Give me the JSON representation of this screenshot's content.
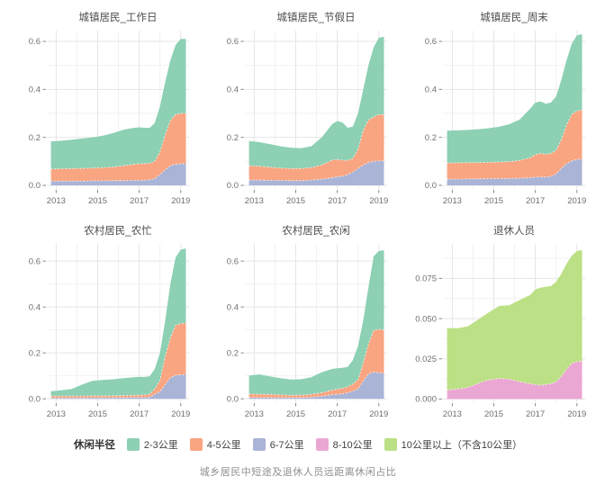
{
  "page": {
    "caption": "城乡居民中短途及退休人员远距离休闲占比"
  },
  "legend": {
    "title": "休闲半径",
    "items": [
      {
        "label": "2-3公里",
        "color": "#8dd0b4"
      },
      {
        "label": "4-5公里",
        "color": "#f9a581"
      },
      {
        "label": "6-7公里",
        "color": "#aab4d6"
      },
      {
        "label": "8-10公里",
        "color": "#eba7d3"
      },
      {
        "label": "10公里以上（不含10公里）",
        "color": "#bce085"
      }
    ]
  },
  "style": {
    "grid_major": "#e5e5e5",
    "grid_minor": "#f2f2f2",
    "tick_color": "#8a8a8a",
    "tick_label_color": "#707070",
    "title_color": "#4d4d4d",
    "band_boundary": "#ffffff"
  },
  "chart_data": [
    {
      "type": "area",
      "stacked": true,
      "title": "城镇居民_工作日",
      "x": [
        2012.75,
        2013.25,
        2013.75,
        2014.25,
        2014.75,
        2015.25,
        2015.75,
        2016.25,
        2016.75,
        2017.0,
        2017.25,
        2017.5,
        2017.75,
        2018.0,
        2018.25,
        2018.5,
        2018.75,
        2019.0,
        2019.25
      ],
      "xlim": [
        2012.55,
        2019.4
      ],
      "ylim": [
        -0.015,
        0.645
      ],
      "xticks": [
        2013,
        2015,
        2017,
        2019
      ],
      "xtick_labels": [
        "2013",
        "2015",
        "2017",
        "2019"
      ],
      "xticks_minor": [
        2014,
        2016,
        2018
      ],
      "yticks": [
        0,
        0.2,
        0.4,
        0.6
      ],
      "ytick_labels": [
        "0.0",
        "0.2",
        "0.4",
        "0.6"
      ],
      "yticks_minor": [
        0.1,
        0.3,
        0.5
      ],
      "series": [
        {
          "name": "6-7公里",
          "color": "#aab4d6",
          "values": [
            0.018,
            0.018,
            0.018,
            0.018,
            0.019,
            0.019,
            0.02,
            0.02,
            0.021,
            0.021,
            0.022,
            0.023,
            0.028,
            0.045,
            0.065,
            0.082,
            0.088,
            0.09,
            0.09
          ]
        },
        {
          "name": "4-5公里",
          "color": "#f9a581",
          "values": [
            0.05,
            0.051,
            0.052,
            0.053,
            0.053,
            0.055,
            0.057,
            0.062,
            0.067,
            0.069,
            0.069,
            0.069,
            0.072,
            0.095,
            0.145,
            0.188,
            0.207,
            0.21,
            0.21
          ]
        },
        {
          "name": "2-3公里",
          "color": "#8dd0b4",
          "values": [
            0.115,
            0.117,
            0.12,
            0.124,
            0.128,
            0.133,
            0.141,
            0.15,
            0.152,
            0.152,
            0.149,
            0.148,
            0.16,
            0.19,
            0.22,
            0.25,
            0.29,
            0.31,
            0.31
          ]
        }
      ]
    },
    {
      "type": "area",
      "stacked": true,
      "title": "城镇居民_节假日",
      "x": [
        2012.75,
        2013.25,
        2013.75,
        2014.25,
        2014.75,
        2015.25,
        2015.75,
        2016.25,
        2016.75,
        2017.0,
        2017.25,
        2017.5,
        2017.75,
        2018.0,
        2018.25,
        2018.5,
        2018.75,
        2019.0,
        2019.25
      ],
      "xlim": [
        2012.55,
        2019.4
      ],
      "ylim": [
        -0.015,
        0.645
      ],
      "xticks": [
        2013,
        2015,
        2017,
        2019
      ],
      "xtick_labels": [
        "2013",
        "2015",
        "2017",
        "2019"
      ],
      "xticks_minor": [
        2014,
        2016,
        2018
      ],
      "yticks": [
        0,
        0.2,
        0.4,
        0.6
      ],
      "ytick_labels": [
        "0.0",
        "0.2",
        "0.4",
        "0.6"
      ],
      "yticks_minor": [
        0.1,
        0.3,
        0.5
      ],
      "series": [
        {
          "name": "6-7公里",
          "color": "#aab4d6",
          "values": [
            0.022,
            0.022,
            0.021,
            0.021,
            0.02,
            0.02,
            0.022,
            0.026,
            0.032,
            0.036,
            0.038,
            0.045,
            0.055,
            0.07,
            0.085,
            0.095,
            0.1,
            0.102,
            0.102
          ]
        },
        {
          "name": "4-5公里",
          "color": "#f9a581",
          "values": [
            0.06,
            0.058,
            0.055,
            0.051,
            0.05,
            0.05,
            0.052,
            0.059,
            0.073,
            0.072,
            0.067,
            0.059,
            0.057,
            0.08,
            0.145,
            0.177,
            0.185,
            0.193,
            0.193
          ]
        },
        {
          "name": "2-3公里",
          "color": "#8dd0b4",
          "values": [
            0.103,
            0.1,
            0.096,
            0.091,
            0.087,
            0.085,
            0.089,
            0.115,
            0.15,
            0.16,
            0.157,
            0.136,
            0.133,
            0.15,
            0.17,
            0.228,
            0.29,
            0.32,
            0.325
          ]
        }
      ]
    },
    {
      "type": "area",
      "stacked": true,
      "title": "城镇居民_周末",
      "x": [
        2012.75,
        2013.25,
        2013.75,
        2014.25,
        2014.75,
        2015.25,
        2015.75,
        2016.25,
        2016.75,
        2017.0,
        2017.25,
        2017.5,
        2017.75,
        2018.0,
        2018.25,
        2018.5,
        2018.75,
        2019.0,
        2019.25
      ],
      "xlim": [
        2012.55,
        2019.4
      ],
      "ylim": [
        -0.015,
        0.645
      ],
      "xticks": [
        2013,
        2015,
        2017,
        2019
      ],
      "xtick_labels": [
        "2013",
        "2015",
        "2017",
        "2019"
      ],
      "xticks_minor": [
        2014,
        2016,
        2018
      ],
      "yticks": [
        0,
        0.2,
        0.4,
        0.6
      ],
      "ytick_labels": [
        "0.0",
        "0.2",
        "0.4",
        "0.6"
      ],
      "yticks_minor": [
        0.1,
        0.3,
        0.5
      ],
      "series": [
        {
          "name": "6-7公里",
          "color": "#aab4d6",
          "values": [
            0.026,
            0.026,
            0.027,
            0.027,
            0.028,
            0.028,
            0.029,
            0.03,
            0.032,
            0.034,
            0.035,
            0.035,
            0.037,
            0.048,
            0.07,
            0.09,
            0.102,
            0.108,
            0.11
          ]
        },
        {
          "name": "4-5公里",
          "color": "#f9a581",
          "values": [
            0.067,
            0.068,
            0.068,
            0.068,
            0.068,
            0.069,
            0.07,
            0.074,
            0.083,
            0.094,
            0.098,
            0.095,
            0.096,
            0.097,
            0.12,
            0.16,
            0.193,
            0.202,
            0.205
          ]
        },
        {
          "name": "2-3公里",
          "color": "#8dd0b4",
          "values": [
            0.135,
            0.135,
            0.136,
            0.139,
            0.142,
            0.147,
            0.156,
            0.171,
            0.205,
            0.217,
            0.217,
            0.21,
            0.212,
            0.225,
            0.25,
            0.27,
            0.295,
            0.315,
            0.315
          ]
        }
      ]
    },
    {
      "type": "area",
      "stacked": true,
      "title": "农村居民_农忙",
      "x": [
        2012.75,
        2013.25,
        2013.75,
        2014.25,
        2014.75,
        2015.25,
        2015.75,
        2016.25,
        2016.75,
        2017.0,
        2017.25,
        2017.5,
        2017.75,
        2018.0,
        2018.25,
        2018.5,
        2018.75,
        2019.0,
        2019.25
      ],
      "xlim": [
        2012.55,
        2019.4
      ],
      "ylim": [
        -0.015,
        0.675
      ],
      "xticks": [
        2013,
        2015,
        2017,
        2019
      ],
      "xtick_labels": [
        "2013",
        "2015",
        "2017",
        "2019"
      ],
      "xticks_minor": [
        2014,
        2016,
        2018
      ],
      "yticks": [
        0,
        0.2,
        0.4,
        0.6
      ],
      "ytick_labels": [
        "0.0",
        "0.2",
        "0.4",
        "0.6"
      ],
      "yticks_minor": [
        0.1,
        0.3,
        0.5
      ],
      "series": [
        {
          "name": "6-7公里",
          "color": "#aab4d6",
          "values": [
            0.004,
            0.004,
            0.004,
            0.004,
            0.005,
            0.005,
            0.005,
            0.005,
            0.006,
            0.006,
            0.006,
            0.007,
            0.02,
            0.031,
            0.062,
            0.092,
            0.102,
            0.105,
            0.105
          ]
        },
        {
          "name": "4-5公里",
          "color": "#f9a581",
          "values": [
            0.008,
            0.008,
            0.008,
            0.008,
            0.008,
            0.008,
            0.008,
            0.009,
            0.009,
            0.01,
            0.011,
            0.013,
            0.023,
            0.049,
            0.123,
            0.173,
            0.218,
            0.223,
            0.225
          ]
        },
        {
          "name": "2-3公里",
          "color": "#8dd0b4",
          "values": [
            0.021,
            0.025,
            0.031,
            0.05,
            0.065,
            0.069,
            0.072,
            0.076,
            0.079,
            0.079,
            0.078,
            0.078,
            0.087,
            0.12,
            0.155,
            0.235,
            0.295,
            0.322,
            0.325
          ]
        }
      ]
    },
    {
      "type": "area",
      "stacked": true,
      "title": "农村居民_农闲",
      "x": [
        2012.75,
        2013.25,
        2013.75,
        2014.25,
        2014.75,
        2015.25,
        2015.75,
        2016.25,
        2016.75,
        2017.0,
        2017.25,
        2017.5,
        2017.75,
        2018.0,
        2018.25,
        2018.5,
        2018.75,
        2019.0,
        2019.25
      ],
      "xlim": [
        2012.55,
        2019.4
      ],
      "ylim": [
        -0.015,
        0.675
      ],
      "xticks": [
        2013,
        2015,
        2017,
        2019
      ],
      "xtick_labels": [
        "2013",
        "2015",
        "2017",
        "2019"
      ],
      "xticks_minor": [
        2014,
        2016,
        2018
      ],
      "yticks": [
        0,
        0.2,
        0.4,
        0.6
      ],
      "ytick_labels": [
        "0.0",
        "0.2",
        "0.4",
        "0.6"
      ],
      "yticks_minor": [
        0.1,
        0.3,
        0.5
      ],
      "series": [
        {
          "name": "6-7公里",
          "color": "#aab4d6",
          "values": [
            0.005,
            0.005,
            0.005,
            0.005,
            0.005,
            0.005,
            0.007,
            0.011,
            0.018,
            0.02,
            0.021,
            0.026,
            0.033,
            0.043,
            0.077,
            0.108,
            0.116,
            0.114,
            0.111
          ]
        },
        {
          "name": "4-5公里",
          "color": "#f9a581",
          "values": [
            0.016,
            0.015,
            0.014,
            0.012,
            0.01,
            0.011,
            0.012,
            0.015,
            0.02,
            0.022,
            0.025,
            0.026,
            0.031,
            0.04,
            0.08,
            0.13,
            0.182,
            0.189,
            0.189
          ]
        },
        {
          "name": "2-3公里",
          "color": "#8dd0b4",
          "values": [
            0.08,
            0.086,
            0.079,
            0.073,
            0.069,
            0.069,
            0.075,
            0.089,
            0.092,
            0.091,
            0.089,
            0.087,
            0.104,
            0.147,
            0.186,
            0.247,
            0.322,
            0.341,
            0.347
          ]
        }
      ]
    },
    {
      "type": "area",
      "stacked": true,
      "title": "退休人员",
      "x": [
        2012.75,
        2013.25,
        2013.75,
        2014.25,
        2014.75,
        2015.25,
        2015.75,
        2016.25,
        2016.75,
        2017.0,
        2017.25,
        2017.5,
        2017.75,
        2018.0,
        2018.25,
        2018.5,
        2018.75,
        2019.0,
        2019.25
      ],
      "xlim": [
        2012.55,
        2019.4
      ],
      "ylim": [
        -0.002,
        0.0965
      ],
      "xticks": [
        2013,
        2015,
        2017,
        2019
      ],
      "xtick_labels": [
        "2013",
        "2015",
        "2017",
        "2019"
      ],
      "xticks_minor": [
        2014,
        2016,
        2018
      ],
      "yticks": [
        0,
        0.025,
        0.05,
        0.075
      ],
      "ytick_labels": [
        "0.000",
        "0.025",
        "0.050",
        "0.075"
      ],
      "yticks_minor": [
        0.0125,
        0.0375,
        0.0625,
        0.0875
      ],
      "series": [
        {
          "name": "8-10公里",
          "color": "#eba7d3",
          "values": [
            0.0055,
            0.0062,
            0.0072,
            0.0098,
            0.0119,
            0.0128,
            0.0124,
            0.0107,
            0.0095,
            0.009,
            0.0086,
            0.009,
            0.0095,
            0.0107,
            0.0141,
            0.0184,
            0.0222,
            0.0233,
            0.0236
          ]
        },
        {
          "name": "10公里以上（不含10公里）",
          "color": "#bce085",
          "values": [
            0.0385,
            0.0378,
            0.038,
            0.0397,
            0.0419,
            0.045,
            0.046,
            0.0509,
            0.0552,
            0.0591,
            0.0607,
            0.0608,
            0.0607,
            0.0621,
            0.0638,
            0.0656,
            0.0669,
            0.0688,
            0.069
          ]
        }
      ]
    }
  ]
}
